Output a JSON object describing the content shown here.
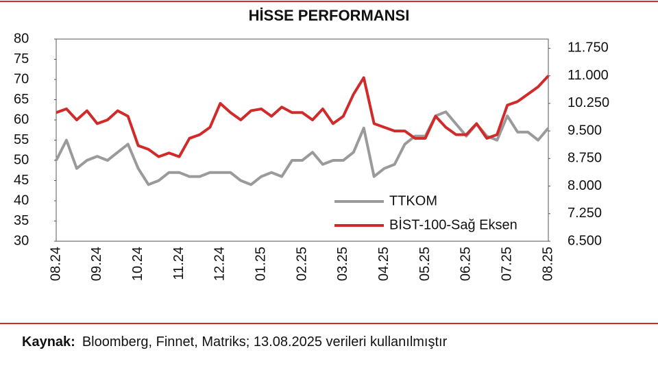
{
  "chart_data": {
    "type": "line",
    "title": "HİSSE PERFORMANSI",
    "categories": [
      "08.24",
      null,
      null,
      null,
      "09.24",
      null,
      null,
      null,
      "10.24",
      null,
      null,
      null,
      "11.24",
      null,
      null,
      null,
      "12.24",
      null,
      null,
      null,
      "01.25",
      null,
      null,
      null,
      "02.25",
      null,
      null,
      null,
      "03.25",
      null,
      null,
      null,
      "04.25",
      null,
      null,
      null,
      "05.25",
      null,
      null,
      null,
      "06.25",
      null,
      null,
      null,
      "07.25",
      null,
      null,
      null,
      "08.25"
    ],
    "series": [
      {
        "name": "TTKOM",
        "color": "#9a9a9a",
        "values": [
          50,
          55,
          48,
          50,
          51,
          50,
          52,
          54,
          48,
          44,
          45,
          47,
          47,
          46,
          46,
          47,
          47,
          47,
          45,
          44,
          46,
          47,
          46,
          50,
          50,
          52,
          49,
          50,
          50,
          52,
          58,
          46,
          48,
          49,
          54,
          56,
          56,
          61,
          62,
          59,
          56,
          59,
          56,
          55,
          61,
          57,
          57,
          55,
          58
        ]
      },
      {
        "name": "BİST-100-Sağ Eksen",
        "color": "#d02a2a",
        "axis": "y2",
        "values": [
          10000,
          10100,
          9800,
          10050,
          9700,
          9800,
          10050,
          9900,
          9100,
          9000,
          8800,
          8900,
          8800,
          9300,
          9400,
          9600,
          10250,
          10000,
          9800,
          10050,
          10100,
          9900,
          10150,
          10000,
          10000,
          9800,
          10100,
          9700,
          9900,
          10500,
          10950,
          9700,
          9600,
          9500,
          9500,
          9300,
          9300,
          9900,
          9600,
          9400,
          9400,
          9700,
          9300,
          9400,
          10200,
          10300,
          10500,
          10700,
          11000
        ]
      }
    ],
    "ylim": [
      30,
      80
    ],
    "yticks": [
      30,
      35,
      40,
      45,
      50,
      55,
      60,
      65,
      70,
      75,
      80
    ],
    "y2lim": [
      6500,
      12000
    ],
    "y2ticks": [
      {
        "value": 6500,
        "label": "6.500"
      },
      {
        "value": 7250,
        "label": "7.250"
      },
      {
        "value": 8000,
        "label": "8.000"
      },
      {
        "value": 8750,
        "label": "8.750"
      },
      {
        "value": 9500,
        "label": "9.500"
      },
      {
        "value": 10250,
        "label": "10.250"
      },
      {
        "value": 11000,
        "label": "11.000"
      },
      {
        "value": 11750,
        "label": "11.750"
      }
    ],
    "y2color": "#d02a2a",
    "legend": "lower right",
    "grid": false
  },
  "footer": {
    "label": "Kaynak:",
    "text": "Bloomberg, Finnet, Matriks; 13.08.2025 verileri kullanılmıştır"
  }
}
